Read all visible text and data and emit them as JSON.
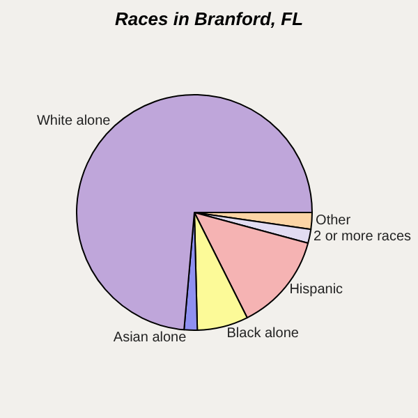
{
  "chart_data": {
    "type": "pie",
    "title": "Races in Branford, FL",
    "categories": [
      "Other",
      "2 or more races",
      "Hispanic",
      "Black alone",
      "Asian alone",
      "White alone"
    ],
    "values": [
      2.3,
      1.9,
      13.4,
      7.0,
      1.8,
      73.6
    ],
    "colors": [
      "#fdd5a5",
      "#e2dcf2",
      "#f5b3b3",
      "#fcfa98",
      "#8f90f0",
      "#bfa6da"
    ],
    "legend": false
  }
}
